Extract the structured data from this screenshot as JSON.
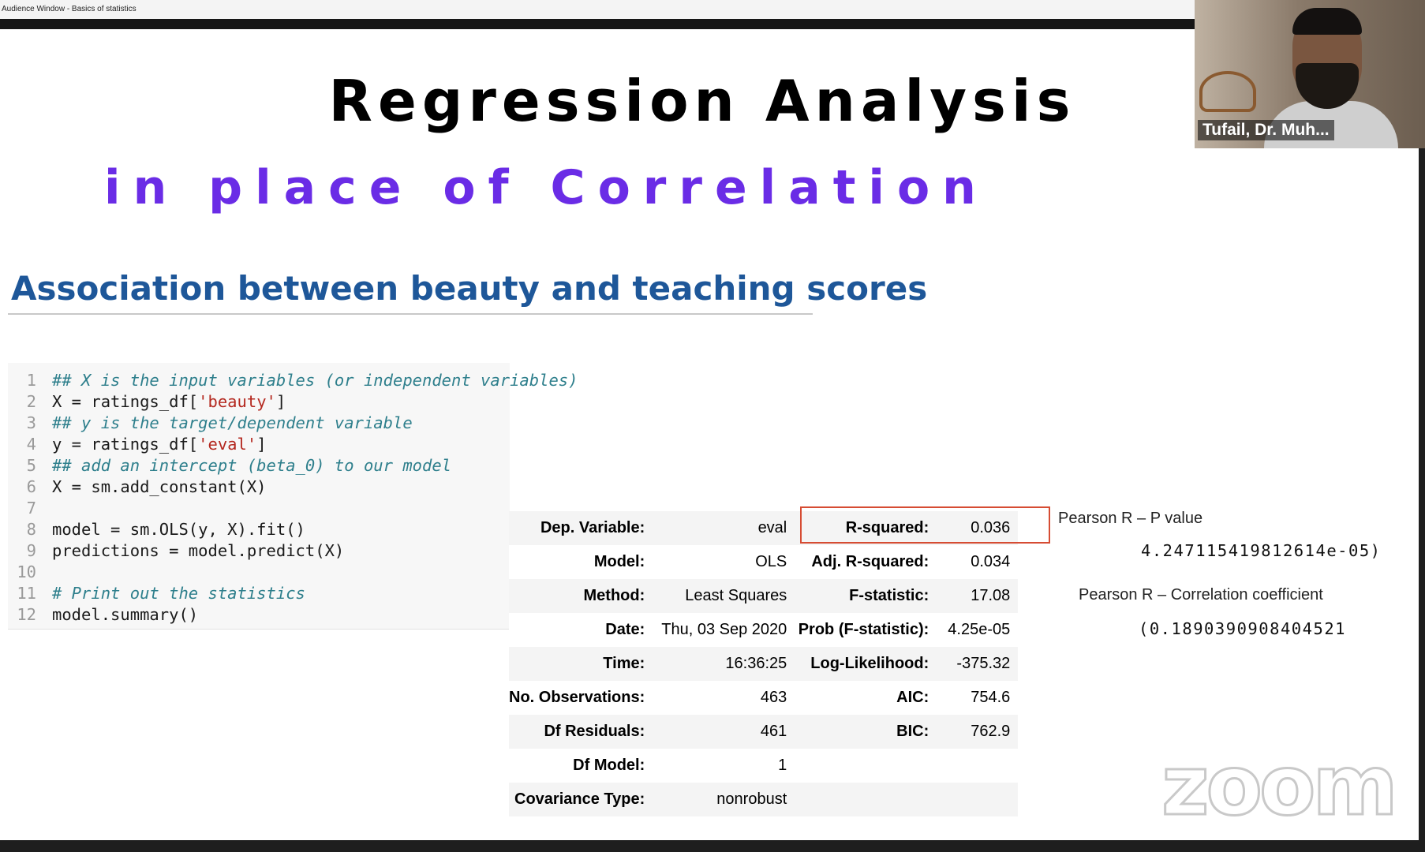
{
  "window": {
    "title": "Audience Window - Basics of statistics"
  },
  "slide": {
    "title": "Regression Analysis",
    "subtitle": "in place of Correlation",
    "section_heading": "Association between beauty and teaching scores"
  },
  "code": {
    "lines": [
      {
        "n": "1",
        "parts": [
          {
            "t": "## X is the input variables (or independent variables)",
            "k": "cm"
          }
        ]
      },
      {
        "n": "2",
        "parts": [
          {
            "t": "X = ratings_df[",
            "k": "tx"
          },
          {
            "t": "'beauty'",
            "k": "str"
          },
          {
            "t": "]",
            "k": "tx"
          }
        ]
      },
      {
        "n": "3",
        "parts": [
          {
            "t": "## y is the target/dependent variable",
            "k": "cm"
          }
        ]
      },
      {
        "n": "4",
        "parts": [
          {
            "t": "y = ratings_df[",
            "k": "tx"
          },
          {
            "t": "'eval'",
            "k": "str"
          },
          {
            "t": "]",
            "k": "tx"
          }
        ]
      },
      {
        "n": "5",
        "parts": [
          {
            "t": "## add an intercept (beta_0) to our model",
            "k": "cm"
          }
        ]
      },
      {
        "n": "6",
        "parts": [
          {
            "t": "X = sm.add_constant(X)",
            "k": "tx"
          }
        ]
      },
      {
        "n": "7",
        "parts": []
      },
      {
        "n": "8",
        "parts": [
          {
            "t": "model = sm.OLS(y, X).fit()",
            "k": "tx"
          }
        ]
      },
      {
        "n": "9",
        "parts": [
          {
            "t": "predictions = model.predict(X)",
            "k": "tx"
          }
        ]
      },
      {
        "n": "10",
        "parts": []
      },
      {
        "n": "11",
        "parts": [
          {
            "t": "# Print out the statistics",
            "k": "cm"
          }
        ]
      },
      {
        "n": "12",
        "parts": [
          {
            "t": "model.summary()",
            "k": "tx"
          }
        ]
      }
    ]
  },
  "summary": {
    "rows": [
      {
        "l1": "Dep. Variable:",
        "v1": "eval",
        "l2": "R-squared:",
        "v2": "0.036"
      },
      {
        "l1": "Model:",
        "v1": "OLS",
        "l2": "Adj. R-squared:",
        "v2": "0.034"
      },
      {
        "l1": "Method:",
        "v1": "Least Squares",
        "l2": "F-statistic:",
        "v2": "17.08"
      },
      {
        "l1": "Date:",
        "v1": "Thu, 03 Sep 2020",
        "l2": "Prob (F-statistic):",
        "v2": "4.25e-05"
      },
      {
        "l1": "Time:",
        "v1": "16:36:25",
        "l2": "Log-Likelihood:",
        "v2": "-375.32"
      },
      {
        "l1": "No. Observations:",
        "v1": "463",
        "l2": "AIC:",
        "v2": "754.6"
      },
      {
        "l1": "Df Residuals:",
        "v1": "461",
        "l2": "BIC:",
        "v2": "762.9"
      },
      {
        "l1": "Df Model:",
        "v1": "1",
        "l2": "",
        "v2": ""
      },
      {
        "l1": "Covariance Type:",
        "v1": "nonrobust",
        "l2": "",
        "v2": ""
      }
    ],
    "highlight_color": "#d64c33"
  },
  "pearson": {
    "p_label": "Pearson R – P value",
    "p_value": "4.247115419812614e-05)",
    "r_label": "Pearson R – Correlation coefficient",
    "r_value": "(0.1890390908404521"
  },
  "webcam": {
    "name": "Tufail, Dr. Muh..."
  },
  "zoom": {
    "logo": "zoom"
  },
  "colors": {
    "subtitle": "#6a2ce6",
    "heading": "#1e5799",
    "comment": "#2e7f8c",
    "string": "#b4281f"
  }
}
